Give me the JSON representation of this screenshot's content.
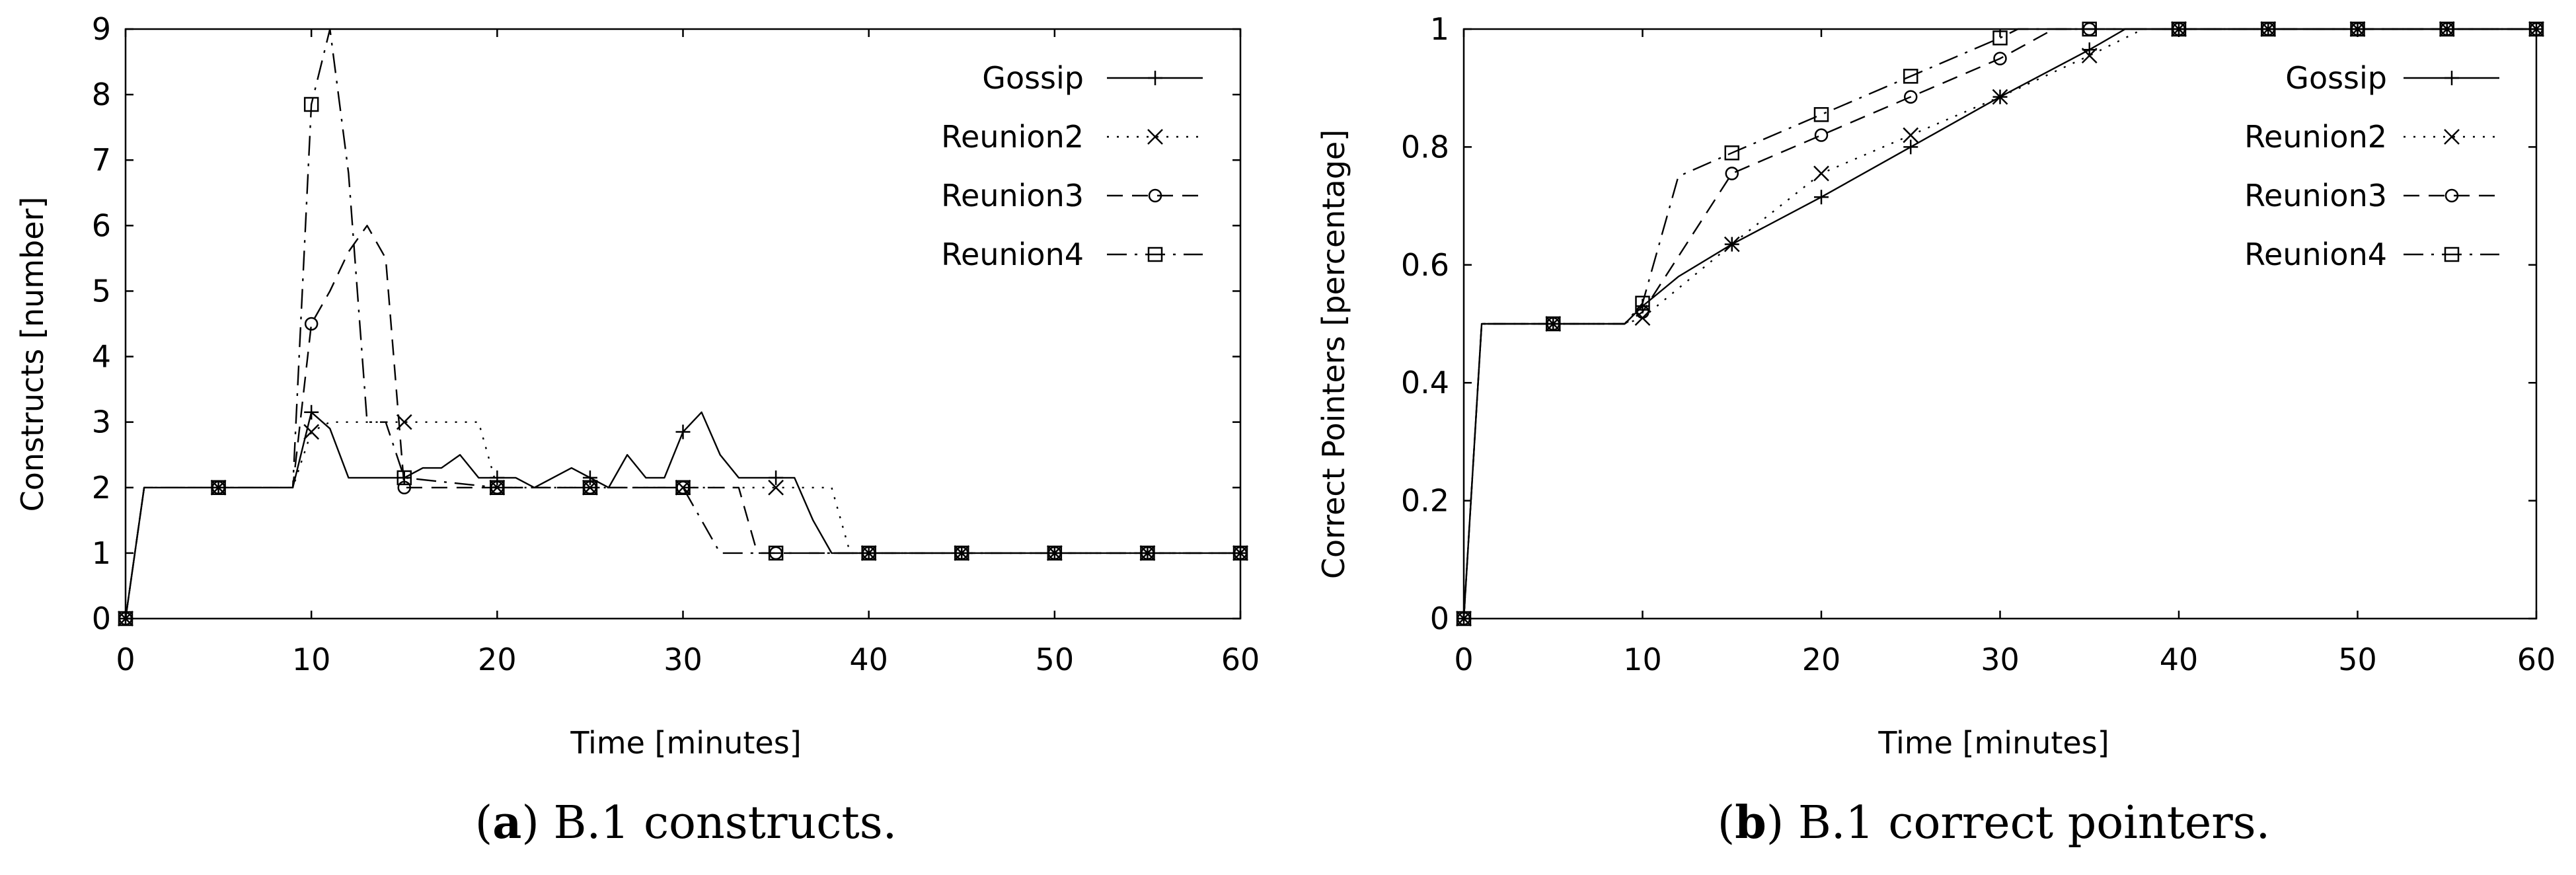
{
  "chart_data": [
    {
      "type": "line",
      "panel": "a",
      "caption_letter": "a",
      "caption": "B.1 constructs.",
      "xlabel": "Time [minutes]",
      "ylabel": "Constructs [number]",
      "xlim": [
        0,
        60
      ],
      "ylim": [
        0,
        9
      ],
      "xticks": [
        0,
        10,
        20,
        30,
        40,
        50,
        60
      ],
      "yticks": [
        0,
        1,
        2,
        3,
        4,
        5,
        6,
        7,
        8,
        9
      ],
      "grid": false,
      "legend_position": "top-right",
      "series": [
        {
          "name": "Gossip",
          "marker": "plus",
          "dash": "solid",
          "x": [
            0,
            1,
            5,
            9,
            10,
            11,
            12,
            13,
            14,
            15,
            16,
            17,
            18,
            19,
            20,
            21,
            22,
            23,
            24,
            25,
            26,
            27,
            28,
            29,
            30,
            31,
            32,
            33,
            34,
            35,
            36,
            37,
            38,
            39,
            40,
            45,
            50,
            55,
            60
          ],
          "y": [
            0,
            2,
            2,
            2,
            3.15,
            2.9,
            2.15,
            2.15,
            2.15,
            2.15,
            2.3,
            2.3,
            2.5,
            2.15,
            2.15,
            2.15,
            2.0,
            2.15,
            2.3,
            2.15,
            2.0,
            2.5,
            2.15,
            2.15,
            2.85,
            3.15,
            2.5,
            2.15,
            2.15,
            2.15,
            2.15,
            1.5,
            1.0,
            1.0,
            1.0,
            1,
            1,
            1,
            1
          ],
          "marker_x": [
            0,
            5,
            10,
            15,
            20,
            25,
            30,
            35,
            40,
            45,
            50,
            55,
            60
          ]
        },
        {
          "name": "Reunion2",
          "marker": "cross",
          "dash": "dotted",
          "x": [
            0,
            1,
            5,
            9,
            10,
            11,
            14,
            15,
            19,
            20,
            30,
            35,
            38,
            39,
            40,
            45,
            50,
            55,
            60
          ],
          "y": [
            0,
            2,
            2,
            2,
            2.85,
            3.0,
            3.0,
            3.0,
            3.0,
            2.0,
            2.0,
            2.0,
            2.0,
            1.0,
            1.0,
            1,
            1,
            1,
            1
          ],
          "marker_x": [
            0,
            5,
            10,
            15,
            20,
            25,
            30,
            35,
            40,
            45,
            50,
            55,
            60
          ]
        },
        {
          "name": "Reunion3",
          "marker": "circle",
          "dash": "dashed",
          "x": [
            0,
            1,
            5,
            9,
            10,
            11,
            12,
            13,
            14,
            15,
            20,
            30,
            33,
            34,
            35,
            40,
            45,
            50,
            55,
            60
          ],
          "y": [
            0,
            2,
            2,
            2,
            4.5,
            5.0,
            5.6,
            6.0,
            5.5,
            2.0,
            2.0,
            2.0,
            2.0,
            1.0,
            1.0,
            1,
            1,
            1,
            1,
            1
          ],
          "marker_x": [
            0,
            5,
            10,
            15,
            20,
            25,
            30,
            35,
            40,
            45,
            50,
            55,
            60
          ]
        },
        {
          "name": "Reunion4",
          "marker": "square",
          "dash": "dashdot",
          "x": [
            0,
            1,
            5,
            9,
            10,
            11,
            12,
            13,
            14,
            15,
            20,
            30,
            31,
            32,
            35,
            40,
            45,
            50,
            55,
            60
          ],
          "y": [
            0,
            2,
            2,
            2,
            7.85,
            9.0,
            6.8,
            3.0,
            3.0,
            2.15,
            2.0,
            2.0,
            1.5,
            1.0,
            1.0,
            1,
            1,
            1,
            1,
            1
          ],
          "marker_x": [
            0,
            5,
            10,
            15,
            20,
            25,
            30,
            35,
            40,
            45,
            50,
            55,
            60
          ]
        }
      ]
    },
    {
      "type": "line",
      "panel": "b",
      "caption_letter": "b",
      "caption": "B.1 correct pointers.",
      "xlabel": "Time [minutes]",
      "ylabel": "Correct Pointers [percentage]",
      "xlim": [
        0,
        60
      ],
      "ylim": [
        0,
        1
      ],
      "xticks": [
        0,
        10,
        20,
        30,
        40,
        50,
        60
      ],
      "yticks": [
        0,
        0.2,
        0.4,
        0.6,
        0.8,
        1
      ],
      "ytick_labels": [
        "0",
        "0.2",
        "0.4",
        "0.6",
        "0.8",
        "1"
      ],
      "grid": false,
      "legend_position": "top-right",
      "series": [
        {
          "name": "Gossip",
          "marker": "plus",
          "dash": "solid",
          "x": [
            0,
            1,
            5,
            9,
            10,
            12,
            15,
            20,
            25,
            30,
            35,
            37,
            40,
            45,
            50,
            55,
            60
          ],
          "y": [
            0,
            0.5,
            0.5,
            0.5,
            0.53,
            0.58,
            0.635,
            0.715,
            0.8,
            0.885,
            0.965,
            1.0,
            1,
            1,
            1,
            1,
            1
          ],
          "marker_x": [
            0,
            5,
            10,
            15,
            20,
            25,
            30,
            35,
            40,
            45,
            50,
            55,
            60
          ]
        },
        {
          "name": "Reunion2",
          "marker": "cross",
          "dash": "dotted",
          "x": [
            0,
            1,
            5,
            9,
            10,
            15,
            20,
            25,
            30,
            35,
            38,
            40,
            45,
            50,
            55,
            60
          ],
          "y": [
            0,
            0.5,
            0.5,
            0.5,
            0.51,
            0.635,
            0.755,
            0.82,
            0.885,
            0.955,
            1.0,
            1,
            1,
            1,
            1,
            1
          ],
          "marker_x": [
            0,
            5,
            10,
            15,
            20,
            25,
            30,
            35,
            40,
            45,
            50,
            55,
            60
          ]
        },
        {
          "name": "Reunion3",
          "marker": "circle",
          "dash": "dashed",
          "x": [
            0,
            1,
            5,
            9,
            10,
            15,
            20,
            25,
            30,
            33,
            35,
            40,
            45,
            50,
            55,
            60
          ],
          "y": [
            0,
            0.5,
            0.5,
            0.5,
            0.52,
            0.755,
            0.82,
            0.885,
            0.95,
            1.0,
            1,
            1,
            1,
            1,
            1,
            1
          ],
          "marker_x": [
            0,
            5,
            10,
            15,
            20,
            25,
            30,
            35,
            40,
            45,
            50,
            55,
            60
          ]
        },
        {
          "name": "Reunion4",
          "marker": "square",
          "dash": "dashdot",
          "x": [
            0,
            1,
            5,
            9,
            10,
            12,
            15,
            20,
            25,
            30,
            31,
            35,
            40,
            45,
            50,
            55,
            60
          ],
          "y": [
            0,
            0.5,
            0.5,
            0.5,
            0.535,
            0.75,
            0.79,
            0.855,
            0.92,
            0.985,
            1.0,
            1,
            1,
            1,
            1,
            1,
            1
          ],
          "marker_x": [
            0,
            5,
            10,
            15,
            20,
            25,
            30,
            35,
            40,
            45,
            50,
            55,
            60
          ]
        }
      ]
    }
  ]
}
